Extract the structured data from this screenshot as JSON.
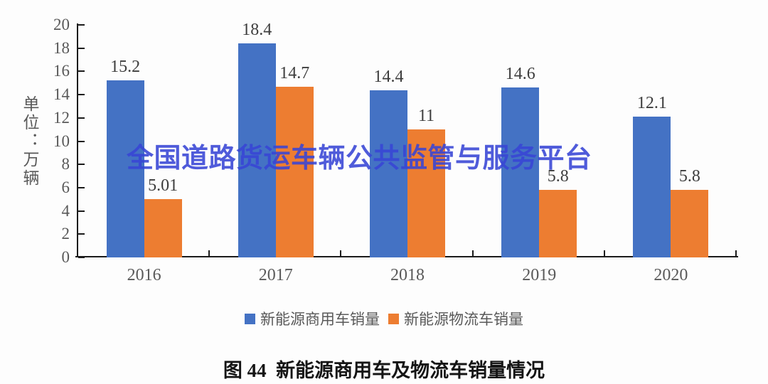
{
  "chart_data": {
    "type": "bar",
    "title": "图 44  新能源商用车及物流车销量情况",
    "categories": [
      "2016",
      "2017",
      "2018",
      "2019",
      "2020"
    ],
    "series": [
      {
        "name": "新能源商用车销量",
        "color": "#4472C4",
        "values": [
          15.2,
          18.4,
          14.4,
          14.6,
          12.1
        ],
        "labels": [
          "15.2",
          "18.4",
          "14.4",
          "14.6",
          "12.1"
        ]
      },
      {
        "name": "新能源物流车销量",
        "color": "#ED7D31",
        "values": [
          5.01,
          14.7,
          11,
          5.8,
          5.8
        ],
        "labels": [
          "5.01",
          "14.7",
          "11",
          "5.8",
          "5.8"
        ]
      }
    ],
    "ylabel": "单位：万辆",
    "xlabel": "",
    "ylim": [
      0,
      20
    ],
    "ytick_step": 2,
    "grid": false,
    "legend_position": "bottom"
  },
  "watermark": {
    "text": "全国道路货运车辆公共监管与服务平台",
    "color": "#3845d6"
  },
  "colors": {
    "axis": "#1b1b1b",
    "tick_label": "#595959",
    "value_label": "#3d3d3d"
  }
}
